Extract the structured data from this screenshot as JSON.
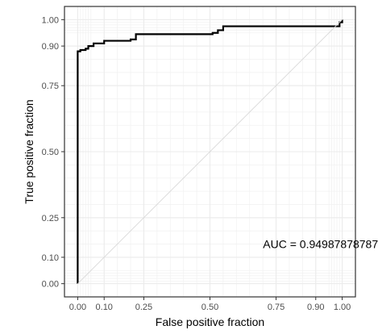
{
  "chart_data": {
    "type": "line",
    "title": "",
    "xlabel": "False positive fraction",
    "ylabel": "True positive fraction",
    "xlim": [
      -0.05,
      1.05
    ],
    "ylim": [
      -0.05,
      1.05
    ],
    "grid": true,
    "x_ticks": [
      0.0,
      0.1,
      0.25,
      0.5,
      0.75,
      0.9,
      1.0
    ],
    "x_tick_labels": [
      "0.00",
      "0.10",
      "0.25",
      "0.50",
      "0.75",
      "0.90",
      "1.00"
    ],
    "y_ticks": [
      0.0,
      0.1,
      0.25,
      0.5,
      0.75,
      0.9,
      1.0
    ],
    "y_tick_labels": [
      "0.00",
      "0.10",
      "0.25",
      "0.50",
      "0.75",
      "0.90",
      "1.00"
    ],
    "minor_grid_ticks": [
      0.0,
      0.01,
      0.02,
      0.03,
      0.04,
      0.05,
      0.1,
      0.15,
      0.2,
      0.25,
      0.3,
      0.35,
      0.4,
      0.45,
      0.5,
      0.55,
      0.6,
      0.65,
      0.7,
      0.75,
      0.8,
      0.85,
      0.9,
      0.95,
      0.96,
      0.97,
      0.98,
      0.99,
      1.0
    ],
    "series": [
      {
        "color": "#000000",
        "x": [
          0.0,
          0.0,
          0.0,
          0.01,
          0.01,
          0.03,
          0.03,
          0.04,
          0.04,
          0.06,
          0.06,
          0.1,
          0.1,
          0.2,
          0.2,
          0.22,
          0.22,
          0.5,
          0.51,
          0.51,
          0.53,
          0.53,
          0.55,
          0.55,
          0.97,
          0.99,
          0.99,
          1.0,
          1.0
        ],
        "y": [
          0.0,
          0.0,
          0.88,
          0.88,
          0.885,
          0.885,
          0.89,
          0.89,
          0.9,
          0.9,
          0.91,
          0.91,
          0.92,
          0.92,
          0.925,
          0.925,
          0.945,
          0.945,
          0.945,
          0.95,
          0.95,
          0.96,
          0.96,
          0.975,
          0.975,
          0.975,
          0.99,
          0.99,
          1.0
        ]
      },
      {
        "color": "#d9d9d9",
        "x": [
          0.0,
          1.0
        ],
        "y": [
          0.0,
          1.0
        ]
      }
    ],
    "annotations": [
      {
        "text": "AUC = 0.949878787878",
        "x": 0.93,
        "y": 0.15
      }
    ],
    "colors": {
      "background": "#ffffff",
      "panel_border": "#333333",
      "major_grid": "#ebebeb",
      "minor_grid": "#f2f2f2",
      "tick_text": "#4d4d4d",
      "axis_title": "#000000"
    }
  }
}
